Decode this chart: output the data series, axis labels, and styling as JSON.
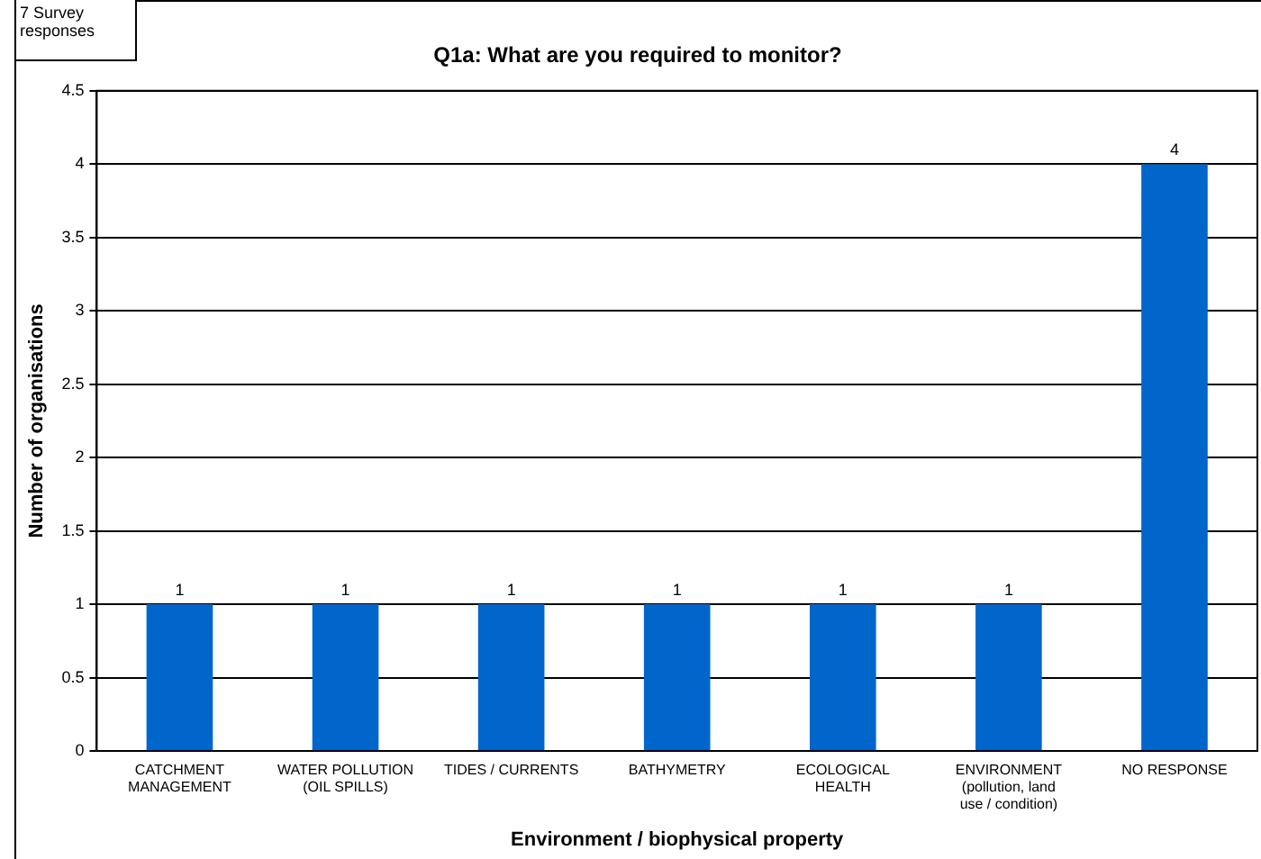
{
  "chart_data": {
    "type": "bar",
    "title": "Q1a: What are you required to monitor?",
    "xlabel": "Environment / biophysical property",
    "ylabel": "Number of organisations",
    "categories": [
      "CATCHMENT MANAGEMENT",
      "WATER POLLUTION (OIL SPILLS)",
      "TIDES / CURRENTS",
      "BATHYMETRY",
      "ECOLOGICAL HEALTH",
      "ENVIRONMENT (pollution, land use / condition)",
      "NO RESPONSE"
    ],
    "values": [
      1,
      1,
      1,
      1,
      1,
      1,
      4
    ],
    "color": "#0066cc",
    "ylim": [
      0,
      4.5
    ],
    "yticks": [
      0,
      0.5,
      1,
      1.5,
      2,
      2.5,
      3,
      3.5,
      4,
      4.5
    ],
    "grid": "y",
    "legend": false,
    "data_labels": true,
    "annotations": [
      "7 Survey responses"
    ]
  }
}
